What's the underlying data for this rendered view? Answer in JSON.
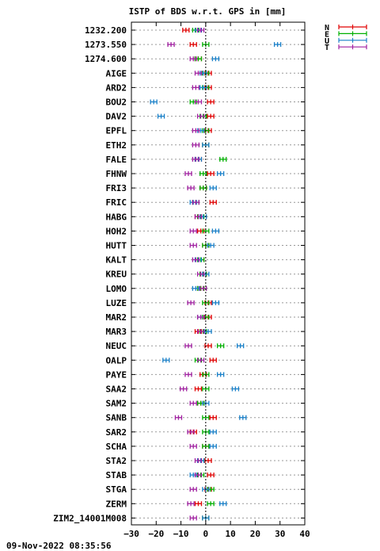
{
  "chart_data": {
    "type": "scatter",
    "title": "ISTP of BDS w.r.t. GPS in [mm]",
    "xlim": [
      -30,
      40
    ],
    "xticks": [
      -30,
      -20,
      -10,
      0,
      10,
      20,
      30,
      40
    ],
    "grid": true,
    "legend_position": "top-right",
    "footer": "09-Nov-2022 08:35:56",
    "categories": [
      "1232.200",
      "1273.550",
      "1274.600",
      "AIGE",
      "ARD2",
      "BOU2",
      "DAV2",
      "EPFL",
      "ETH2",
      "FALE",
      "FHNW",
      "FRI3",
      "FRIC",
      "HABG",
      "HOH2",
      "HUTT",
      "KALT",
      "KREU",
      "LOMO",
      "LUZE",
      "MAR2",
      "MAR3",
      "NEUC",
      "OALP",
      "PAYE",
      "SAA2",
      "SAM2",
      "SANB",
      "SAR2",
      "SCHA",
      "STA2",
      "STAB",
      "STGA",
      "ZERM",
      "ZIM2_14001M008"
    ],
    "series": [
      {
        "name": "N",
        "color": "#e00000",
        "values": [
          -8,
          -5,
          -3,
          1,
          1,
          2,
          2,
          1,
          0,
          -3,
          2,
          -1,
          3,
          -3,
          -2,
          0,
          -2,
          -1,
          -2,
          1,
          1,
          -3,
          1,
          3,
          -1,
          -3,
          -2,
          3,
          -5,
          0,
          1,
          2,
          1,
          -3,
          0
        ]
      },
      {
        "name": "E",
        "color": "#00b000",
        "values": [
          -4,
          0,
          -3,
          0,
          0,
          -5,
          -1,
          0,
          0,
          7,
          -1,
          -1,
          -4,
          -2,
          0,
          0,
          -2,
          -1,
          -2,
          0,
          0,
          -1,
          6,
          -3,
          0,
          0,
          -2,
          0,
          0,
          0,
          -2,
          -2,
          2,
          2,
          0
        ]
      },
      {
        "name": "U",
        "color": "#1a80c8",
        "values": [
          -3,
          29,
          4,
          -1,
          -1,
          -21,
          -18,
          -2,
          0,
          -3,
          6,
          3,
          -5,
          -1,
          4,
          2,
          -3,
          0,
          -4,
          4,
          -2,
          1,
          14,
          -16,
          6,
          12,
          0,
          15,
          3,
          3,
          -2,
          -5,
          0,
          7,
          0
        ]
      },
      {
        "name": "T",
        "color": "#a020a0",
        "values": [
          -2,
          -14,
          -5,
          -3,
          -4,
          -3,
          -2,
          -4,
          -4,
          -4,
          -7,
          -6,
          -4,
          -3,
          -5,
          -5,
          -4,
          -2,
          -1,
          -6,
          -2,
          -2,
          -7,
          -2,
          -7,
          -9,
          -5,
          -11,
          -6,
          -5,
          -3,
          -3,
          -5,
          -6,
          -5
        ]
      }
    ]
  }
}
